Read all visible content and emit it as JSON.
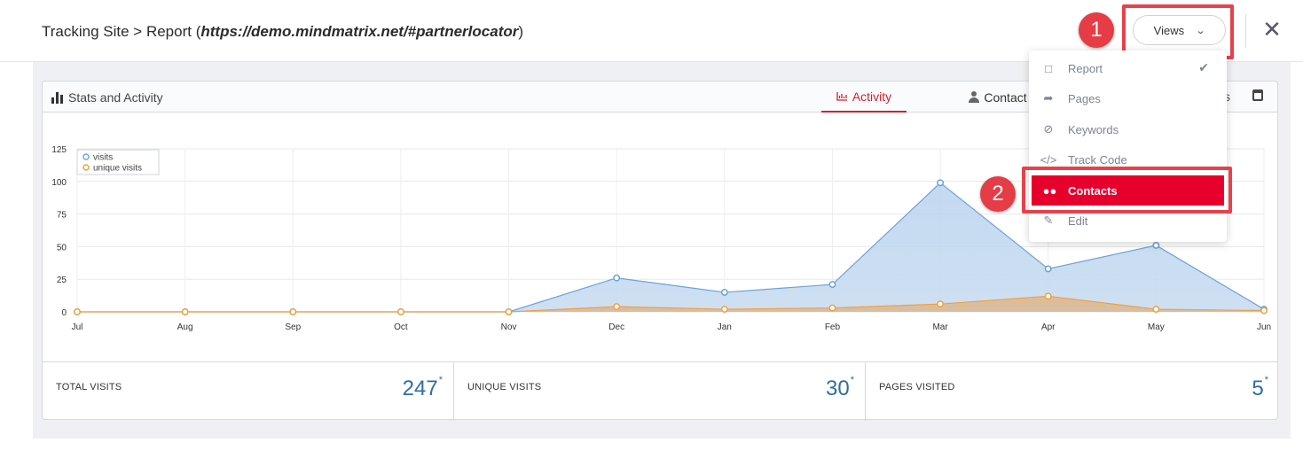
{
  "header": {
    "title_prefix": "Tracking Site > Report (",
    "title_url": "https://demo.mindmatrix.net/#partnerlocator",
    "title_suffix": ")",
    "views_button_label": "Views",
    "close_icon": "close-icon"
  },
  "callouts": {
    "step1": "1",
    "step2": "2"
  },
  "card": {
    "title": "Stats and Activity",
    "tabs": [
      {
        "label": "Activity",
        "active": true
      },
      {
        "label": "Contact",
        "active": false
      }
    ],
    "tab_more_fragment": "s"
  },
  "views_menu": {
    "items": [
      {
        "label": "Report",
        "icon": "bar-chart-icon",
        "checked": true
      },
      {
        "label": "Pages",
        "icon": "share-arrow-icon"
      },
      {
        "label": "Keywords",
        "icon": "ban-icon"
      },
      {
        "label": "Track Code",
        "icon": "code-icon"
      },
      {
        "label": "Contacts",
        "icon": "users-icon",
        "highlighted": true
      },
      {
        "label": "Edit",
        "icon": "edit-icon"
      }
    ]
  },
  "stats": [
    {
      "label": "TOTAL VISITS",
      "value": "247",
      "mark": "*"
    },
    {
      "label": "UNIQUE VISITS",
      "value": "30",
      "mark": "*"
    },
    {
      "label": "PAGES VISITED",
      "value": "5",
      "mark": "*"
    }
  ],
  "colors": {
    "accent": "#d1202f",
    "menu_active": "#e8002c",
    "visits": "#6ba3d6",
    "unique": "#f0a040",
    "stat_value": "#2e6da4"
  },
  "chart_data": {
    "type": "area",
    "categories": [
      "Jul",
      "Aug",
      "Sep",
      "Oct",
      "Nov",
      "Dec",
      "Jan",
      "Feb",
      "Mar",
      "Apr",
      "May",
      "Jun"
    ],
    "series": [
      {
        "name": "visits",
        "values": [
          0,
          0,
          0,
          0,
          0,
          26,
          15,
          21,
          99,
          33,
          51,
          2
        ]
      },
      {
        "name": "unique visits",
        "values": [
          0,
          0,
          0,
          0,
          0,
          4,
          2,
          3,
          6,
          12,
          2,
          1
        ]
      }
    ],
    "yticks": [
      0,
      25,
      50,
      75,
      100,
      125
    ],
    "ylim": [
      0,
      125
    ],
    "grid": true,
    "legend": "top-left"
  }
}
